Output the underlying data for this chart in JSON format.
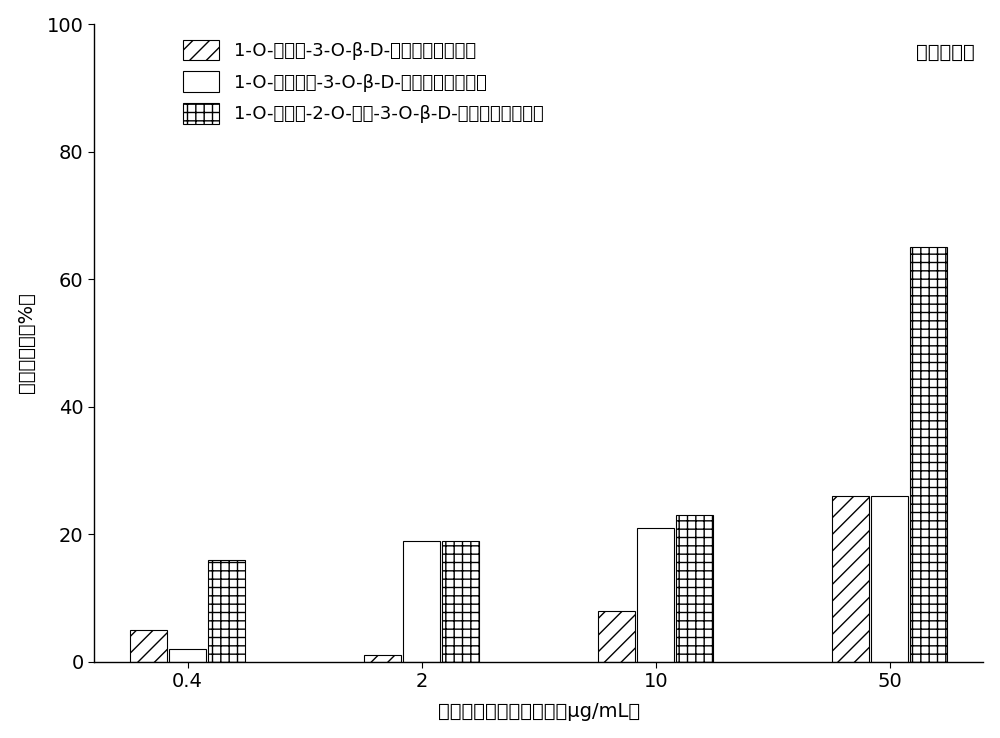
{
  "title_right": "赤潮异弯藻",
  "xlabel": "甘油糖脂类化合物浓度（μg/mL）",
  "ylabel": "生长抑制率（%）",
  "categories": [
    "0.4",
    "2",
    "10",
    "50"
  ],
  "series": [
    {
      "name": "1-O-棕梆酸-3-O-β-D-吵喂半乳糖甘油脂",
      "values": [
        5,
        1,
        8,
        26
      ],
      "hatch": "//",
      "facecolor": "white",
      "edgecolor": "black"
    },
    {
      "name": "1-O-十八烷酸-3-O-β-D-吵喂半乳糖甘油脂",
      "values": [
        2,
        19,
        21,
        26
      ],
      "hatch": "---",
      "facecolor": "white",
      "edgecolor": "black"
    },
    {
      "name": "1-O-棕梆酸-2-O-油酸-3-O-β-D-吵喂半乳糖甘油脂",
      "values": [
        16,
        19,
        23,
        65
      ],
      "hatch": "+++",
      "facecolor": "white",
      "edgecolor": "black"
    }
  ],
  "ylim": [
    0,
    100
  ],
  "yticks": [
    0,
    20,
    40,
    60,
    80,
    100
  ],
  "bar_width": 0.25,
  "group_positions": [
    1.0,
    2.5,
    4.0,
    5.5
  ],
  "legend_loc": "upper left",
  "background_color": "white",
  "fontsize_tick": 14,
  "fontsize_label": 14,
  "fontsize_legend": 13
}
